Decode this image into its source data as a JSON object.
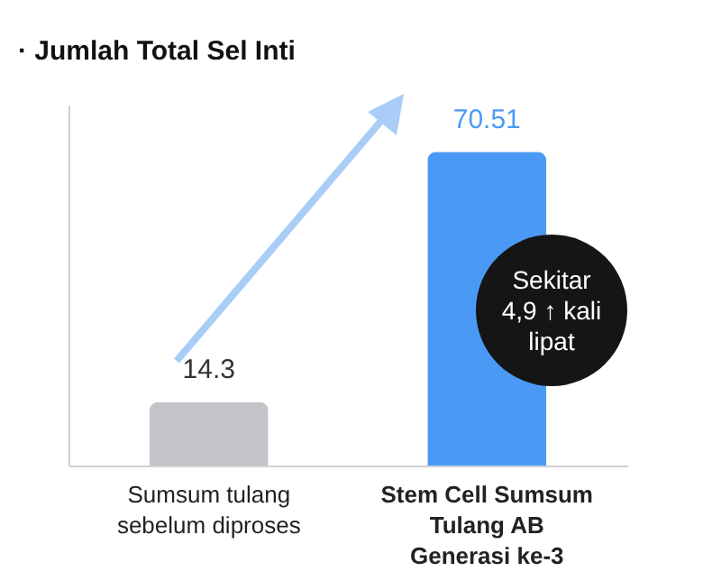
{
  "chart_data": {
    "type": "bar",
    "title": "· Jumlah Total Sel Inti",
    "categories": [
      "Sumsum tulang sebelum diproses",
      "Stem Cell Sumsum Tulang AB Generasi ke-3"
    ],
    "values": [
      14.3,
      70.51
    ],
    "colors": [
      "#c3c5c8",
      "#4a9af5"
    ],
    "data_labels": true,
    "grid": false,
    "annotations": [
      "Sekitar 4,9 ↑ kali lipat"
    ]
  }
}
